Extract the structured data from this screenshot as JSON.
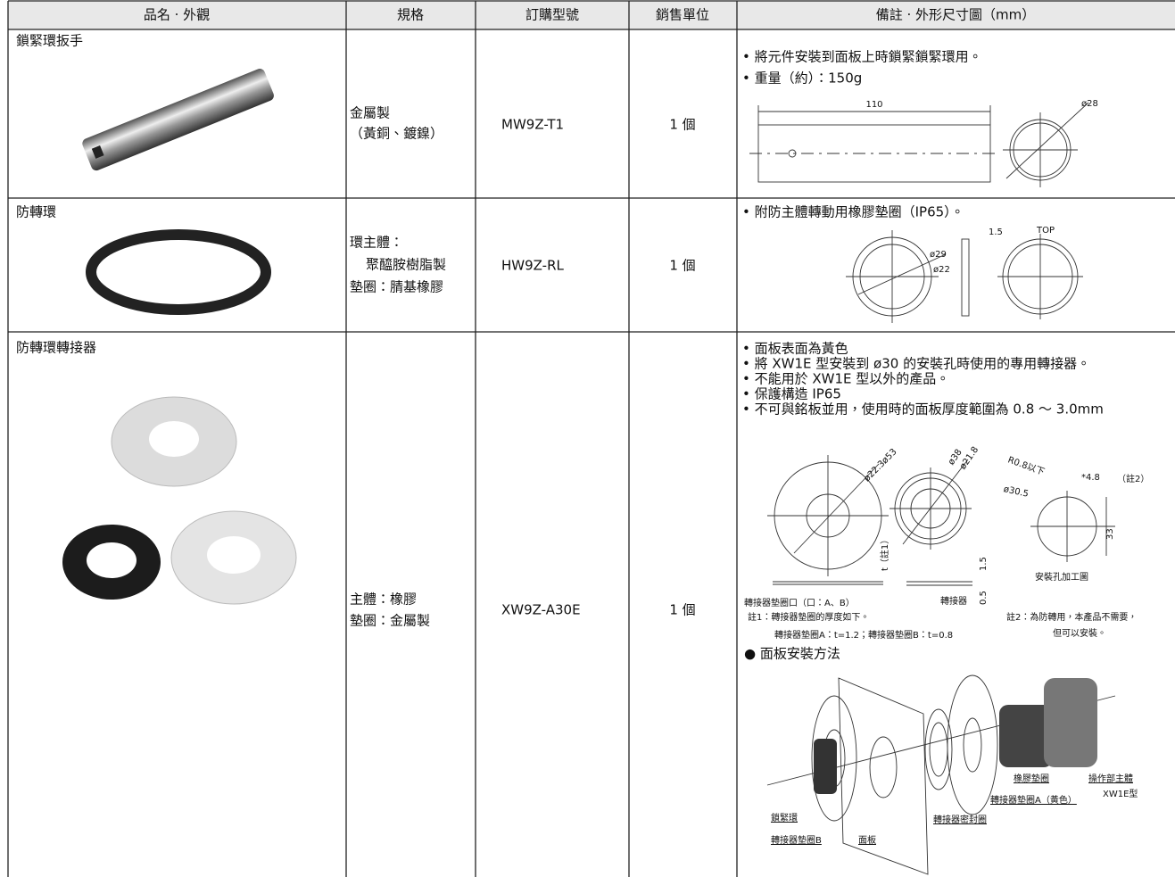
{
  "table": {
    "headers": [
      "品名 · 外觀",
      "規格",
      "訂購型號",
      "銷售單位",
      "備註 · 外形尺寸圖（mm）"
    ],
    "rows": [
      {
        "name": "鎖緊環扳手",
        "spec": [
          "金屬製",
          "（黃銅、鍍鎳）"
        ],
        "order_no": "MW9Z-T1",
        "unit": "1 個",
        "notes": [
          "• 將元件安裝到面板上時鎖緊鎖緊環用。",
          "• 重量（約）：150g"
        ],
        "diagram_labels": [
          "110",
          "ø28"
        ]
      },
      {
        "name": "防轉環",
        "spec": [
          "環主體：",
          "聚醯胺樹脂製",
          "墊圈：腈基橡膠"
        ],
        "order_no": "HW9Z-RL",
        "unit": "1 個",
        "notes": [
          "• 附防主體轉動用橡膠墊圈（IP65）。"
        ],
        "diagram_labels": [
          "1.5",
          "TOP",
          "ø29",
          "ø22"
        ]
      },
      {
        "name": "防轉環轉接器",
        "spec": [
          "主體：橡膠",
          "墊圈：金屬製"
        ],
        "order_no": "XW9Z-A30E",
        "unit": "1 個",
        "notes": [
          "• 面板表面為黃色",
          "• 將 XW1E 型安裝到 ø30 的安裝孔時使用的專用轉接器。",
          "• 不能用於 XW1E 型以外的產品。",
          "• 保護構造 IP65",
          "• 不可與銘板並用，使用時的面板厚度範圍為 0.8 ～ 3.0mm"
        ],
        "diagram_labels": [
          "ø53",
          "ø22.3",
          "ø38",
          "ø21.8",
          "R0.8以下",
          "*4.8",
          "（註2）",
          "ø30.5",
          "33",
          "t（註1）",
          "1.5",
          "0.5",
          "安裝孔加工圖",
          "轉接器墊圈口（口：A、B）",
          "轉接器"
        ],
        "footnotes": [
          "註1：轉接器墊圈的厚度如下。",
          "轉接器墊圈A：t=1.2；轉接器墊圈B：t=0.8",
          "註2：為防轉用，本產品不需要，",
          "但可以安裝。"
        ],
        "mount_title": "● 面板安裝方法",
        "mount_labels": [
          "鎖緊環",
          "轉接器墊圈B",
          "面板",
          "轉接器密封圈",
          "轉接器墊圈A（黃色）",
          "橡膠墊圈",
          "操作部主體",
          "XW1E型"
        ]
      }
    ]
  }
}
